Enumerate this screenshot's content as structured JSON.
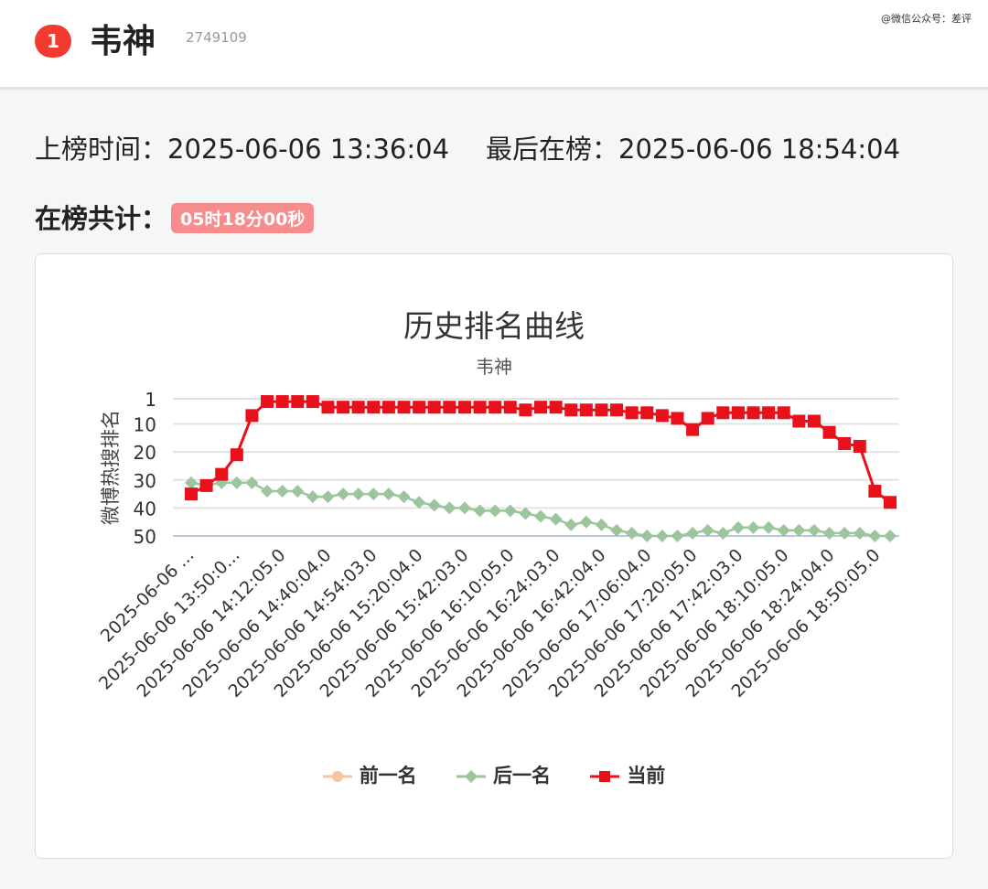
{
  "header": {
    "rank": "1",
    "title": "韦神",
    "count": "2749109",
    "watermark": "@微信公众号：差评"
  },
  "info": {
    "first_label": "上榜时间：",
    "first_time": "2025-06-06 13:36:04",
    "last_label": "最后在榜：",
    "last_time": "2025-06-06 18:54:04",
    "total_label": "在榜共计：",
    "total_value": "05时18分00秒"
  },
  "chart_data": {
    "type": "line",
    "title": "历史排名曲线",
    "subtitle": "韦神",
    "ylabel": "微博热搜排名",
    "y_inverted": true,
    "ylim": [
      1,
      50
    ],
    "yticks": [
      1,
      10,
      20,
      30,
      40,
      50
    ],
    "grid": true,
    "legend_position": "bottom",
    "x_tick_labels": [
      "2025-06-06 ...",
      "2025-06-06 13:50:0...",
      "2025-06-06 14:12:05.0",
      "2025-06-06 14:40:04.0",
      "2025-06-06 14:54:03.0",
      "2025-06-06 15:20:04.0",
      "2025-06-06 15:42:03.0",
      "2025-06-06 16:10:05.0",
      "2025-06-06 16:24:03.0",
      "2025-06-06 16:42:04.0",
      "2025-06-06 17:06:04.0",
      "2025-06-06 17:20:05.0",
      "2025-06-06 17:42:03.0",
      "2025-06-06 18:10:05.0",
      "2025-06-06 18:24:04.0",
      "2025-06-06 18:50:05.0"
    ],
    "series": [
      {
        "name": "前一名",
        "color": "#f7c4a0",
        "marker": "circle",
        "values": []
      },
      {
        "name": "后一名",
        "color": "#9dc59d",
        "marker": "diamond",
        "values": [
          31,
          32,
          31,
          31,
          31,
          34,
          34,
          34,
          36,
          36,
          35,
          35,
          35,
          35,
          36,
          38,
          39,
          40,
          40,
          41,
          41,
          41,
          42,
          43,
          44,
          46,
          45,
          46,
          48,
          49,
          50,
          50,
          50,
          49,
          48,
          49,
          47,
          47,
          47,
          48,
          48,
          48,
          49,
          49,
          49,
          50,
          50
        ]
      },
      {
        "name": "当前",
        "color": "#e8101a",
        "marker": "square",
        "values": [
          35,
          32,
          28,
          21,
          7,
          2,
          2,
          2,
          2,
          4,
          4,
          4,
          4,
          4,
          4,
          4,
          4,
          4,
          4,
          4,
          4,
          4,
          5,
          4,
          4,
          5,
          5,
          5,
          5,
          6,
          6,
          7,
          8,
          12,
          8,
          6,
          6,
          6,
          6,
          6,
          9,
          9,
          13,
          17,
          18,
          34,
          38
        ]
      }
    ]
  }
}
